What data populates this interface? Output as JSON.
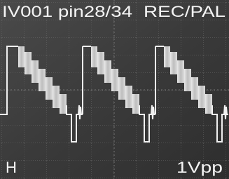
{
  "header": {
    "title": "IV001 pin28/34",
    "mode": "REC/PAL"
  },
  "footer": {
    "left": "H",
    "right": "1Vpp"
  }
}
